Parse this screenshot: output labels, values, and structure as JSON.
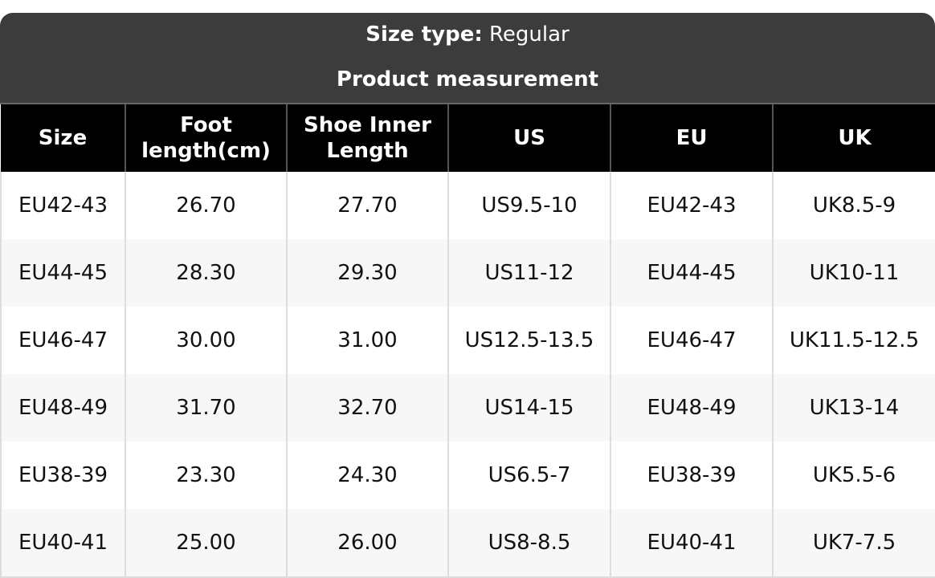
{
  "header": {
    "size_type_label": "Size type:",
    "size_type_value": "Regular",
    "subtitle": "Product measurement"
  },
  "table": {
    "columns": [
      "Size",
      "Foot length(cm)",
      "Shoe Inner Length",
      "US",
      "EU",
      "UK"
    ],
    "rows": [
      [
        "EU42-43",
        "26.70",
        "27.70",
        "US9.5-10",
        "EU42-43",
        "UK8.5-9"
      ],
      [
        "EU44-45",
        "28.30",
        "29.30",
        "US11-12",
        "EU44-45",
        "UK10-11"
      ],
      [
        "EU46-47",
        "30.00",
        "31.00",
        "US12.5-13.5",
        "EU46-47",
        "UK11.5-12.5"
      ],
      [
        "EU48-49",
        "31.70",
        "32.70",
        "US14-15",
        "EU48-49",
        "UK13-14"
      ],
      [
        "EU38-39",
        "23.30",
        "24.30",
        "US6.5-7",
        "EU38-39",
        "UK5.5-6"
      ],
      [
        "EU40-41",
        "25.00",
        "26.00",
        "US8-8.5",
        "EU40-41",
        "UK7-7.5"
      ]
    ]
  }
}
